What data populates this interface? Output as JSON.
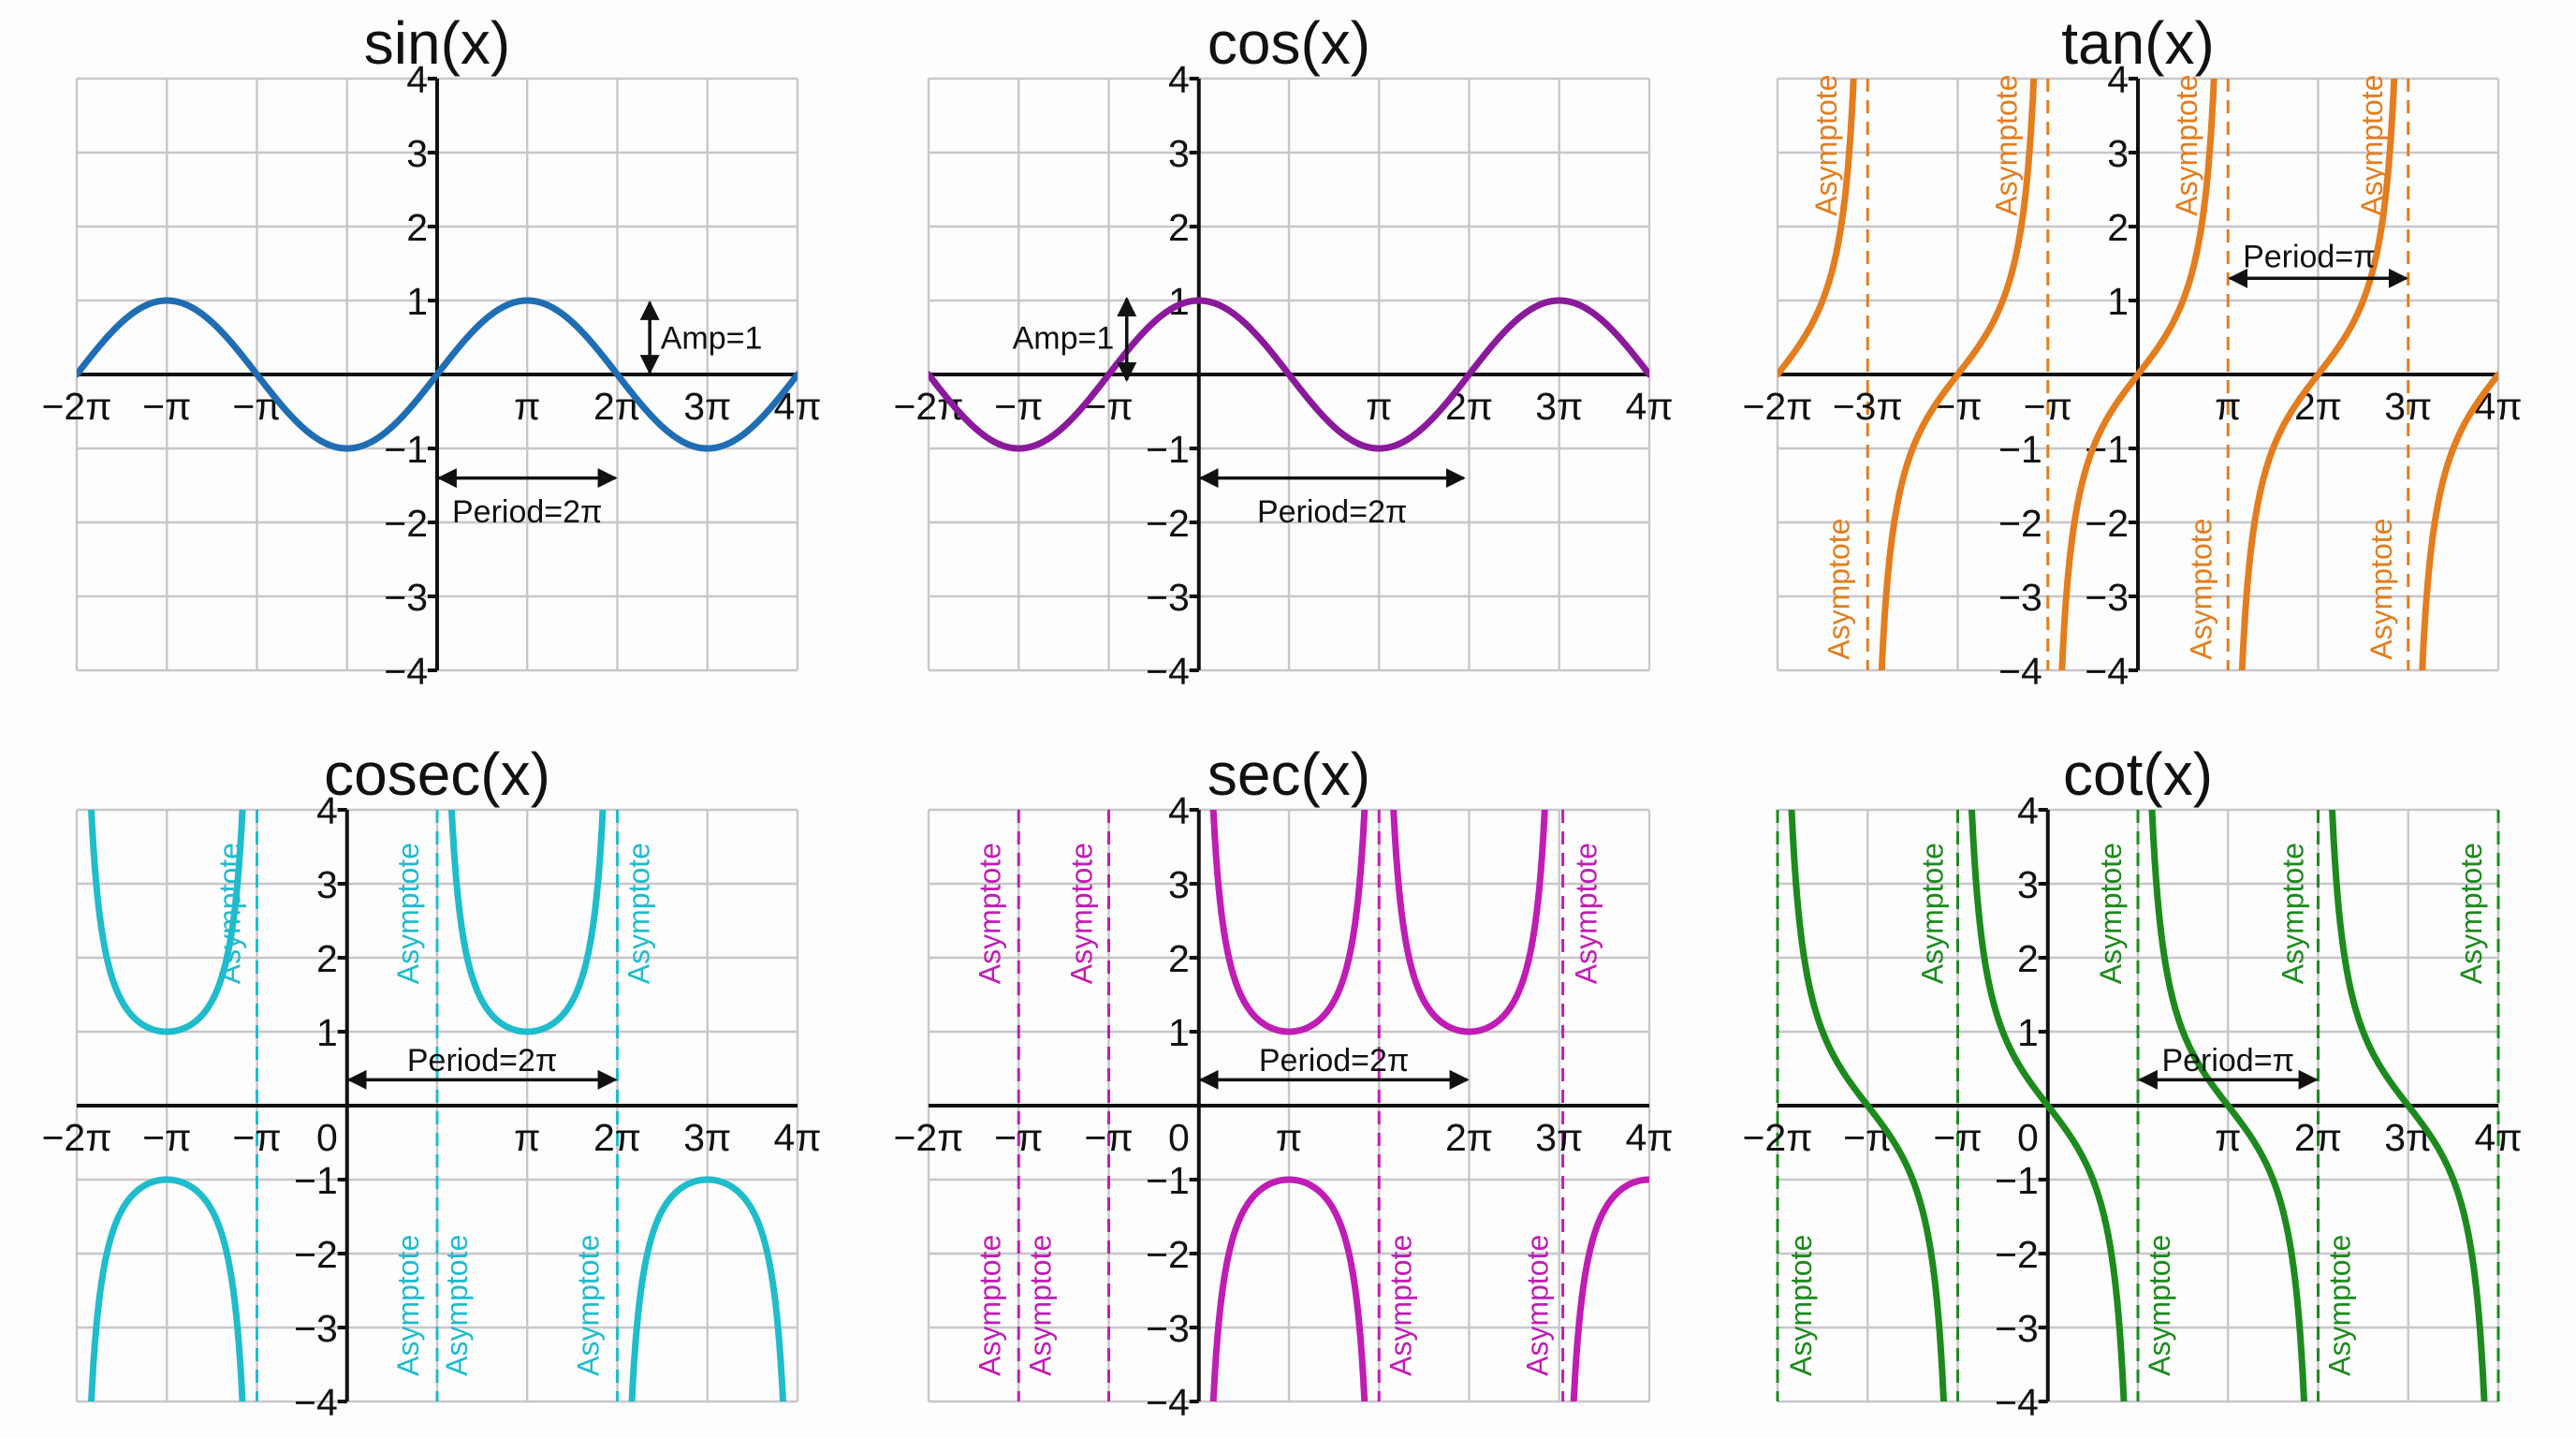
{
  "chart_data": [
    {
      "type": "line",
      "title": "sin(x)",
      "function": "sin",
      "color": "#1f6db3",
      "x_unit": "π",
      "xlim": [
        -2,
        2
      ],
      "ylim": [
        -4,
        4
      ],
      "grid": true,
      "grid_x_step": 0.5,
      "x_ticks": [
        {
          "x": -2,
          "label": "−2π"
        },
        {
          "x": -1.5,
          "label": "−π"
        },
        {
          "x": -1,
          "label": "−π"
        },
        {
          "x": 0.5,
          "label": "π"
        },
        {
          "x": 1,
          "label": "2π"
        },
        {
          "x": 1.5,
          "label": "3π"
        },
        {
          "x": 2,
          "label": "4π"
        }
      ],
      "y_ticks": [
        {
          "y": 4,
          "label": "4"
        },
        {
          "y": 3,
          "label": "3"
        },
        {
          "y": 2,
          "label": "2"
        },
        {
          "y": 1,
          "label": "1"
        },
        {
          "y": -1,
          "label": "−1"
        },
        {
          "y": -2,
          "label": "−2"
        },
        {
          "y": -3,
          "label": "−3"
        },
        {
          "y": -4,
          "label": "−4"
        }
      ],
      "extra_y_ticks": [],
      "asymptotes": [],
      "asymptote_labels": [],
      "annotations": [
        {
          "kind": "vertical-arrow",
          "x": 1.18,
          "y_from": 0,
          "y_to": 1,
          "label": "Amp=1",
          "label_x": 1.24,
          "label_y": 0.5,
          "anchor": "start"
        },
        {
          "kind": "horizontal-arrow",
          "y": -1.4,
          "x_from": 0,
          "x_to": 1,
          "label": "Period=2π",
          "label_x": 0.5,
          "label_y": -1.85,
          "anchor": "middle"
        }
      ]
    },
    {
      "type": "line",
      "title": "cos(x)",
      "function": "cos",
      "color": "#8a1a9b",
      "x_unit": "π",
      "xlim": [
        -1.5,
        2.5
      ],
      "ylim": [
        -4,
        4
      ],
      "grid": true,
      "grid_x_step": 0.5,
      "x_ticks": [
        {
          "x": -1.5,
          "label": "−2π"
        },
        {
          "x": -1,
          "label": "−π"
        },
        {
          "x": -0.5,
          "label": "−π"
        },
        {
          "x": 1,
          "label": "π"
        },
        {
          "x": 1.5,
          "label": "2π"
        },
        {
          "x": 2,
          "label": "3π"
        },
        {
          "x": 2.5,
          "label": "4π"
        }
      ],
      "y_ticks": [
        {
          "y": 4,
          "label": "4"
        },
        {
          "y": 3,
          "label": "3"
        },
        {
          "y": 2,
          "label": "2"
        },
        {
          "y": 1,
          "label": "1"
        },
        {
          "y": -1,
          "label": "−1"
        },
        {
          "y": -2,
          "label": "−2"
        },
        {
          "y": -3,
          "label": "−3"
        },
        {
          "y": -4,
          "label": "−4"
        }
      ],
      "extra_y_ticks": [],
      "asymptotes": [],
      "asymptote_labels": [],
      "annotations": [
        {
          "kind": "vertical-arrow",
          "x": -0.4,
          "y_from": -0.1,
          "y_to": 1.05,
          "label": "Amp=1",
          "label_x": -0.47,
          "label_y": 0.5,
          "anchor": "end"
        },
        {
          "kind": "horizontal-arrow",
          "y": -1.4,
          "x_from": 0,
          "x_to": 1.48,
          "label": "Period=2π",
          "label_x": 0.74,
          "label_y": -1.85,
          "anchor": "middle"
        }
      ]
    },
    {
      "type": "line",
      "title": "tan(x)",
      "function": "tan",
      "color": "#e37d1e",
      "x_unit": "π",
      "xlim": [
        -2,
        2
      ],
      "ylim": [
        -4,
        4
      ],
      "grid": true,
      "grid_x_step": 1,
      "x_ticks": [
        {
          "x": -2,
          "label": "−2π"
        },
        {
          "x": -1.5,
          "label": "−3π"
        },
        {
          "x": -1,
          "label": "−π"
        },
        {
          "x": -0.5,
          "label": "−π"
        },
        {
          "x": 0.5,
          "label": "π"
        },
        {
          "x": 1,
          "label": "2π"
        },
        {
          "x": 1.5,
          "label": "3π"
        },
        {
          "x": 2,
          "label": "4π"
        }
      ],
      "y_ticks": [
        {
          "y": 4,
          "label": "4"
        },
        {
          "y": 3,
          "label": "3"
        },
        {
          "y": 2,
          "label": "2"
        },
        {
          "y": 1,
          "label": "1"
        },
        {
          "y": -1,
          "label": "−1"
        },
        {
          "y": -2,
          "label": "−2"
        },
        {
          "y": -3,
          "label": "−3"
        },
        {
          "y": -4,
          "label": "−4"
        }
      ],
      "extra_y_ticks": [
        {
          "x": -0.5,
          "y": -1,
          "label": "−1"
        },
        {
          "x": -0.5,
          "y": -2,
          "label": "−2"
        },
        {
          "x": -0.5,
          "y": -3,
          "label": "−3"
        },
        {
          "x": -0.5,
          "y": -4,
          "label": "−4"
        }
      ],
      "asymptotes": [
        -1.5,
        -0.5,
        0.5,
        1.5
      ],
      "asymptote_labels": [
        {
          "x": -1.73,
          "y": 3.1,
          "text": "Asymptote"
        },
        {
          "x": -0.73,
          "y": 3.1,
          "text": "Asymptote"
        },
        {
          "x": 0.27,
          "y": 3.1,
          "text": "Asymptote"
        },
        {
          "x": 1.3,
          "y": 3.1,
          "text": "Asymptote"
        },
        {
          "x": -1.66,
          "y": -2.9,
          "text": "Asymptote"
        },
        {
          "x": 0.35,
          "y": -2.9,
          "text": "Asymptote"
        },
        {
          "x": 1.35,
          "y": -2.9,
          "text": "Asymptote"
        }
      ],
      "annotations": [
        {
          "kind": "horizontal-arrow",
          "y": 1.3,
          "x_from": 0.5,
          "x_to": 1.5,
          "label": "Period=π",
          "label_x": 0.95,
          "label_y": 1.6,
          "anchor": "middle"
        }
      ]
    },
    {
      "type": "line",
      "title": "cosec(x)",
      "color": "#1fbccc",
      "x_unit": "π",
      "xlim": [
        -1.5,
        2.5
      ],
      "ylim": [
        -4,
        4
      ],
      "grid": true,
      "grid_x_step": 0.5,
      "branches": [
        {
          "center": -1,
          "sign": 1
        },
        {
          "center": 1,
          "sign": 1
        },
        {
          "center": -1,
          "sign": -1
        },
        {
          "center": 2,
          "sign": -1
        }
      ],
      "x_ticks": [
        {
          "x": -1.5,
          "label": "−2π"
        },
        {
          "x": -1,
          "label": "−π"
        },
        {
          "x": -0.5,
          "label": "−π"
        },
        {
          "x": 0,
          "label": "0"
        },
        {
          "x": 1,
          "label": "π"
        },
        {
          "x": 1.5,
          "label": "2π"
        },
        {
          "x": 2,
          "label": "3π"
        },
        {
          "x": 2.5,
          "label": "4π"
        }
      ],
      "y_ticks": [
        {
          "y": 4,
          "label": "4"
        },
        {
          "y": 3,
          "label": "3"
        },
        {
          "y": 2,
          "label": "2"
        },
        {
          "y": 1,
          "label": "1"
        },
        {
          "y": -1,
          "label": "−1"
        },
        {
          "y": -2,
          "label": "−2"
        },
        {
          "y": -3,
          "label": "−3"
        },
        {
          "y": -4,
          "label": "−4"
        }
      ],
      "extra_y_ticks": [],
      "asymptotes": [
        -0.5,
        0.5,
        1.5
      ],
      "asymptote_labels": [
        {
          "x": -0.65,
          "y": 2.6,
          "text": "Asymptote"
        },
        {
          "x": 0.34,
          "y": 2.6,
          "text": "Asymptote"
        },
        {
          "x": 1.62,
          "y": 2.6,
          "text": "Asymptote"
        },
        {
          "x": 0.34,
          "y": -2.7,
          "text": "Asymptote"
        },
        {
          "x": 0.61,
          "y": -2.7,
          "text": "Asymptote"
        },
        {
          "x": 1.34,
          "y": -2.7,
          "text": "Asymptote"
        }
      ],
      "annotations": [
        {
          "kind": "horizontal-arrow",
          "y": 0.35,
          "x_from": 0,
          "x_to": 1.5,
          "label": "Period=2π",
          "label_x": 0.75,
          "label_y": 0.62,
          "anchor": "middle"
        }
      ]
    },
    {
      "type": "line",
      "title": "sec(x)",
      "color": "#c01db4",
      "x_unit": "π",
      "xlim": [
        -1.5,
        2.5
      ],
      "ylim": [
        -4,
        4
      ],
      "grid": true,
      "grid_x_step": 0.5,
      "branches": [
        {
          "center": 0.5,
          "sign": 1
        },
        {
          "center": 1.5,
          "sign": 1
        },
        {
          "center": 0.5,
          "sign": -1
        },
        {
          "center": 2.5,
          "sign": -1
        }
      ],
      "x_ticks": [
        {
          "x": -1.5,
          "label": "−2π"
        },
        {
          "x": -1,
          "label": "−π"
        },
        {
          "x": -0.5,
          "label": "−π"
        },
        {
          "x": 0,
          "label": "0"
        },
        {
          "x": 0.5,
          "label": "π"
        },
        {
          "x": 1.5,
          "label": "2π"
        },
        {
          "x": 2,
          "label": "3π"
        },
        {
          "x": 2.5,
          "label": "4π"
        }
      ],
      "y_ticks": [
        {
          "y": 4,
          "label": "4"
        },
        {
          "y": 3,
          "label": "3"
        },
        {
          "y": 2,
          "label": "2"
        },
        {
          "y": 1,
          "label": "1"
        },
        {
          "y": -1,
          "label": "−1"
        },
        {
          "y": -2,
          "label": "−2"
        },
        {
          "y": -3,
          "label": "−3"
        },
        {
          "y": -4,
          "label": "−4"
        }
      ],
      "extra_y_ticks": [],
      "asymptotes": [
        -1,
        -0.5,
        1,
        2.02
      ],
      "asymptote_labels": [
        {
          "x": -1.16,
          "y": 2.6,
          "text": "Asymptote"
        },
        {
          "x": -0.65,
          "y": 2.6,
          "text": "Asymptote"
        },
        {
          "x": 2.15,
          "y": 2.6,
          "text": "Asymptote"
        },
        {
          "x": -1.16,
          "y": -2.7,
          "text": "Asymptote"
        },
        {
          "x": -0.88,
          "y": -2.7,
          "text": "Asymptote"
        },
        {
          "x": 1.12,
          "y": -2.7,
          "text": "Asymptote"
        },
        {
          "x": 1.88,
          "y": -2.7,
          "text": "Asymptote"
        }
      ],
      "annotations": [
        {
          "kind": "horizontal-arrow",
          "y": 0.35,
          "x_from": 0,
          "x_to": 1.5,
          "label": "Period=2π",
          "label_x": 0.75,
          "label_y": 0.62,
          "anchor": "middle"
        }
      ]
    },
    {
      "type": "line",
      "title": "cot(x)",
      "color": "#1d8a1d",
      "x_unit": "π",
      "xlim": [
        -1.5,
        2.5
      ],
      "ylim": [
        -4,
        4
      ],
      "grid": true,
      "grid_x_step": 0.5,
      "branches": [
        {
          "center": -1,
          "kind": "cot"
        },
        {
          "center": 0,
          "kind": "cot"
        },
        {
          "center": 1,
          "kind": "cot"
        },
        {
          "center": 2,
          "kind": "cot"
        }
      ],
      "x_ticks": [
        {
          "x": -1.5,
          "label": "−2π"
        },
        {
          "x": -1,
          "label": "−π"
        },
        {
          "x": -0.5,
          "label": "−π"
        },
        {
          "x": 0,
          "label": "0"
        },
        {
          "x": 1,
          "label": "π"
        },
        {
          "x": 1.5,
          "label": "2π"
        },
        {
          "x": 2,
          "label": "3π"
        },
        {
          "x": 2.5,
          "label": "4π"
        }
      ],
      "y_ticks": [
        {
          "y": 4,
          "label": "4"
        },
        {
          "y": 3,
          "label": "3"
        },
        {
          "y": 2,
          "label": "2"
        },
        {
          "y": 1,
          "label": "1"
        },
        {
          "y": -1,
          "label": "−1"
        },
        {
          "y": -2,
          "label": "−2"
        },
        {
          "y": -3,
          "label": "−3"
        },
        {
          "y": -4,
          "label": "−4"
        }
      ],
      "extra_y_ticks": [],
      "asymptotes": [
        -1.5,
        -0.5,
        0.5,
        1.5,
        2.5
      ],
      "asymptote_labels": [
        {
          "x": -0.64,
          "y": 2.6,
          "text": "Asymptote"
        },
        {
          "x": 0.35,
          "y": 2.6,
          "text": "Asymptote"
        },
        {
          "x": 1.36,
          "y": 2.6,
          "text": "Asymptote"
        },
        {
          "x": 2.35,
          "y": 2.6,
          "text": "Asymptote"
        },
        {
          "x": -1.37,
          "y": -2.7,
          "text": "Asymptote"
        },
        {
          "x": 0.62,
          "y": -2.7,
          "text": "Asymptote"
        },
        {
          "x": 1.62,
          "y": -2.7,
          "text": "Asymptote"
        }
      ],
      "annotations": [
        {
          "kind": "horizontal-arrow",
          "y": 0.35,
          "x_from": 0.5,
          "x_to": 1.5,
          "label": "Period=π",
          "label_x": 1.0,
          "label_y": 0.62,
          "anchor": "middle"
        }
      ]
    }
  ]
}
